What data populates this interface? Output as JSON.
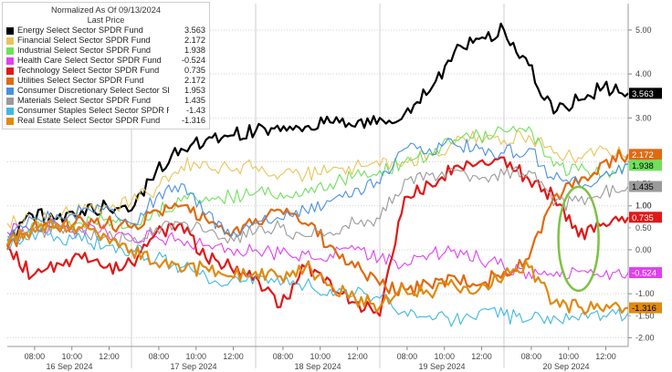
{
  "legend": {
    "title": "Normalized As Of 09/13/2024",
    "subtitle": "Last Price",
    "items": [
      {
        "name": "Energy Select Sector SPDR Fund",
        "value": "3.563",
        "color": "#000000"
      },
      {
        "name": "Financial Select Sector SPDR Fund",
        "value": "2.172",
        "color": "#e8c45a"
      },
      {
        "name": "Industrial Select Sector SPDR Fund",
        "value": "1.938",
        "color": "#6fe05c"
      },
      {
        "name": "Health Care Select Sector SPDR Fund",
        "value": "-0.524",
        "color": "#e040f0"
      },
      {
        "name": "Technology Select Sector SPDR Fund",
        "value": "0.735",
        "color": "#e01818"
      },
      {
        "name": "Utilities Select Sector SPDR Fund",
        "value": "2.172",
        "color": "#e06a10"
      },
      {
        "name": "Consumer Discretionary Select Sector SPDR Fund",
        "value": "1.953",
        "color": "#4a90e0"
      },
      {
        "name": "Materials Select Sector SPDR Fund",
        "value": "1.435",
        "color": "#9a9a9a"
      },
      {
        "name": "Consumer Staples Select Sector SPDR Fund",
        "value": "-1.43",
        "color": "#40b8e0"
      },
      {
        "name": "Real Estate Select Sector SPDR Fund",
        "value": "-1.316",
        "color": "#e08a10"
      }
    ]
  },
  "chart_data": {
    "type": "line",
    "ylim": [
      -2.2,
      5.6
    ],
    "yticks": [
      "5.00",
      "4.00",
      "3.00",
      "2.00",
      "1.00",
      "0.00",
      "-1.00",
      "-2.00"
    ],
    "ytick_values": [
      5,
      4,
      3,
      2,
      1,
      0,
      -1,
      -2
    ],
    "xtick_labels": [
      "08:00",
      "10:00",
      "12:00",
      "08:00",
      "10:00",
      "12:00",
      "08:00",
      "10:00",
      "12:00",
      "08:00",
      "10:00",
      "12:00",
      "08:00",
      "10:00",
      "12:00"
    ],
    "days": [
      "16 Sep 2024",
      "17 Sep 2024",
      "18 Sep 2024",
      "19 Sep 2024",
      "20 Sep 2024"
    ],
    "extra_axis_labels": [
      "1.50",
      "1.00",
      "0.50",
      "-0.50",
      "-1.50"
    ],
    "extra_axis_values": [
      1.5,
      1.0,
      0.5,
      -0.5,
      -1.5
    ],
    "x": [
      0,
      2,
      4,
      6,
      8,
      10,
      12,
      14,
      16,
      18,
      20,
      22,
      24,
      26,
      28,
      30,
      32,
      34,
      36,
      38,
      40,
      42,
      44,
      46,
      48,
      50
    ],
    "series": [
      {
        "name": "Energy Select Sector SPDR Fund",
        "color": "#000000",
        "last_label": "3.563",
        "values": [
          0.1,
          0.8,
          0.7,
          0.9,
          1.0,
          0.9,
          1.8,
          2.3,
          2.5,
          2.6,
          2.7,
          2.7,
          2.8,
          2.9,
          2.8,
          3.0,
          3.1,
          3.6,
          4.5,
          4.8,
          5.0,
          4.2,
          3.1,
          3.4,
          3.7,
          3.56
        ]
      },
      {
        "name": "Financial Select Sector SPDR Fund",
        "color": "#e8c45a",
        "last_label": "2.172",
        "values": [
          0.6,
          0.7,
          0.8,
          0.9,
          1.0,
          1.1,
          1.4,
          1.9,
          2.0,
          1.8,
          1.9,
          1.7,
          1.7,
          1.8,
          1.9,
          1.9,
          2.0,
          2.2,
          2.4,
          2.6,
          2.5,
          2.6,
          2.2,
          2.1,
          2.3,
          2.17
        ]
      },
      {
        "name": "Industrial Select Sector SPDR Fund",
        "color": "#6fe05c",
        "last_label": "1.938",
        "values": [
          0.2,
          0.6,
          0.5,
          0.6,
          0.7,
          0.6,
          0.9,
          1.1,
          1.2,
          1.2,
          1.3,
          1.3,
          1.4,
          1.5,
          1.7,
          1.8,
          2.0,
          2.2,
          2.5,
          2.6,
          2.7,
          2.8,
          1.9,
          1.8,
          1.7,
          1.94
        ]
      },
      {
        "name": "Health Care Select Sector SPDR Fund",
        "color": "#e040f0",
        "last_label": "-0.524",
        "values": [
          0.4,
          0.5,
          0.6,
          0.5,
          0.4,
          0.3,
          0.3,
          0.2,
          0.1,
          0.0,
          0.0,
          -0.1,
          -0.1,
          -0.1,
          0.0,
          -0.2,
          -0.3,
          -0.1,
          0.0,
          -0.2,
          -0.4,
          -0.5,
          -0.6,
          -0.5,
          -0.6,
          -0.52
        ]
      },
      {
        "name": "Technology Select Sector SPDR Fund",
        "color": "#e01818",
        "last_label": "0.735",
        "values": [
          0.1,
          -0.6,
          -0.3,
          -0.2,
          -0.4,
          -0.3,
          0.4,
          0.6,
          -0.2,
          -0.4,
          -0.6,
          -1.3,
          -0.4,
          -0.7,
          -1.2,
          -1.5,
          1.2,
          1.5,
          1.9,
          2.0,
          2.1,
          1.6,
          1.2,
          0.3,
          0.6,
          0.74
        ]
      },
      {
        "name": "Utilities Select Sector SPDR Fund",
        "color": "#e06a10",
        "last_label": "2.172",
        "values": [
          0.0,
          0.5,
          0.5,
          0.7,
          0.6,
          0.5,
          0.9,
          1.0,
          0.7,
          0.3,
          0.7,
          0.9,
          0.6,
          0.1,
          -0.4,
          -0.8,
          -0.9,
          -0.8,
          -0.6,
          -0.8,
          -0.5,
          -0.2,
          1.2,
          1.5,
          2.0,
          2.17
        ]
      },
      {
        "name": "Consumer Discretionary Select Sector SPDR Fund",
        "color": "#4a90e0",
        "last_label": "1.953",
        "values": [
          0.2,
          0.7,
          0.8,
          0.9,
          1.0,
          0.6,
          1.2,
          1.5,
          0.8,
          0.3,
          0.6,
          0.7,
          0.9,
          1.1,
          1.4,
          1.5,
          2.3,
          2.3,
          2.4,
          2.3,
          2.2,
          2.3,
          1.6,
          1.5,
          1.7,
          1.95
        ]
      },
      {
        "name": "Materials Select Sector SPDR Fund",
        "color": "#9a9a9a",
        "last_label": "1.435",
        "values": [
          0.3,
          0.4,
          0.5,
          0.4,
          0.3,
          0.2,
          0.5,
          0.6,
          0.4,
          0.3,
          0.4,
          0.5,
          0.3,
          0.4,
          0.6,
          0.7,
          1.6,
          1.7,
          1.8,
          1.6,
          1.7,
          1.8,
          1.0,
          1.1,
          1.3,
          1.44
        ]
      },
      {
        "name": "Consumer Staples Select Sector SPDR Fund",
        "color": "#40b8e0",
        "last_label": "-1.43",
        "values": [
          0.0,
          0.4,
          0.3,
          0.2,
          0.1,
          0.0,
          -0.2,
          -0.4,
          -0.6,
          -0.7,
          -0.6,
          -0.8,
          -0.8,
          -0.9,
          -1.0,
          -1.1,
          -1.4,
          -1.5,
          -1.6,
          -1.4,
          -1.5,
          -1.6,
          -1.5,
          -1.6,
          -1.5,
          -1.43
        ]
      },
      {
        "name": "Real Estate Select Sector SPDR Fund",
        "color": "#e08a10",
        "last_label": "-1.316",
        "values": [
          0.1,
          0.5,
          0.6,
          0.5,
          0.3,
          0.0,
          -0.3,
          -0.5,
          -0.4,
          -0.6,
          -0.5,
          -0.6,
          -0.4,
          -0.8,
          -1.1,
          -1.3,
          -0.9,
          -1.0,
          -0.8,
          -0.9,
          -0.6,
          -0.4,
          -1.2,
          -1.3,
          -1.4,
          -1.32
        ]
      }
    ],
    "annotation": {
      "shape": "ellipse",
      "color": "#7dc242",
      "x_center": 46,
      "y_center": 0.25
    }
  }
}
